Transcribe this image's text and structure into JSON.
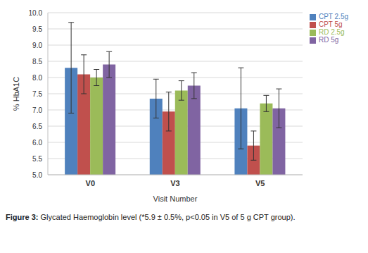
{
  "chart_data": {
    "type": "bar",
    "caption": "Figure 3: Glycated Haemoglobin level (*5.9 ± 0.5%, p<0.05 in V5 of 5 g CPT group).",
    "x_label": "Visit Number",
    "y_label": "% HbA1C",
    "categories": [
      "V0",
      "V3",
      "V5"
    ],
    "series": [
      {
        "name": "CPT 2.5g",
        "color": "#4f81bd",
        "values": [
          8.3,
          7.35,
          7.05
        ],
        "error": [
          1.4,
          0.6,
          1.25
        ]
      },
      {
        "name": "CPT 5g",
        "color": "#c0504d",
        "values": [
          8.1,
          6.95,
          5.9
        ],
        "error": [
          0.6,
          0.6,
          0.45
        ]
      },
      {
        "name": "RD 2.5g",
        "color": "#9bbb59",
        "values": [
          8.0,
          7.6,
          7.2
        ],
        "error": [
          0.25,
          0.3,
          0.25
        ]
      },
      {
        "name": "RD 5g",
        "color": "#8064a2",
        "values": [
          8.4,
          7.75,
          7.05
        ],
        "error": [
          0.4,
          0.4,
          0.6
        ]
      }
    ],
    "ylim": [
      5,
      10
    ],
    "yticks": [
      {
        "value": 5,
        "label": "5.0"
      },
      5.5,
      {
        "value": 6,
        "label": "6.0"
      },
      6.5,
      {
        "value": 7,
        "label": "7.0"
      },
      7.5,
      {
        "value": 8,
        "label": "8.0"
      },
      8.5,
      {
        "value": 9,
        "label": "9.0"
      },
      9.5,
      {
        "value": 10,
        "label": "10.0"
      }
    ],
    "grid": true,
    "legend": "top right"
  }
}
